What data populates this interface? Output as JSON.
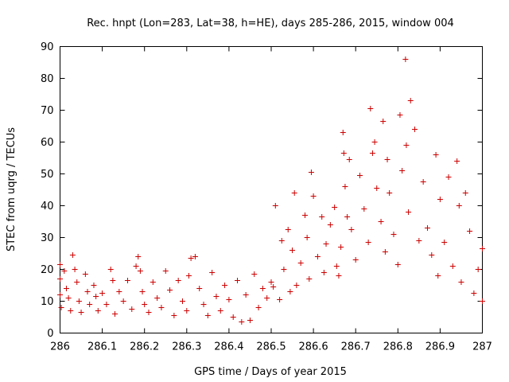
{
  "chart_data": {
    "type": "scatter",
    "title": "Rec. hnpt (Lon=283, Lat=38, h=HE), days 285-286, 2015, window 004",
    "xlabel": "GPS time / Days of year 2015",
    "ylabel": "STEC from uqrg / TECUs",
    "xlim": [
      286,
      287
    ],
    "ylim": [
      0,
      90
    ],
    "x_ticks": [
      "286",
      "286.1",
      "286.2",
      "286.3",
      "286.4",
      "286.5",
      "286.6",
      "286.7",
      "286.8",
      "286.9",
      "287"
    ],
    "y_ticks": [
      "0",
      "10",
      "20",
      "30",
      "40",
      "50",
      "60",
      "70",
      "80",
      "90"
    ],
    "grid": false,
    "marker": "plus",
    "colors": {
      "series": "#cc0000",
      "axes": "#000000"
    },
    "series": [
      {
        "points": [
          [
            286.0,
            21.5
          ],
          [
            286.0,
            17.0
          ],
          [
            286.0,
            12.0
          ],
          [
            286.003,
            8.0
          ],
          [
            286.01,
            19.5
          ],
          [
            286.015,
            14.0
          ],
          [
            286.02,
            11.0
          ],
          [
            286.025,
            7.0
          ],
          [
            286.03,
            24.5
          ],
          [
            286.035,
            20.0
          ],
          [
            286.04,
            16.0
          ],
          [
            286.045,
            10.0
          ],
          [
            286.05,
            6.5
          ],
          [
            286.06,
            18.5
          ],
          [
            286.065,
            13.0
          ],
          [
            286.07,
            9.0
          ],
          [
            286.08,
            15.0
          ],
          [
            286.085,
            11.5
          ],
          [
            286.09,
            7.0
          ],
          [
            286.1,
            12.5
          ],
          [
            286.11,
            9.0
          ],
          [
            286.12,
            20.0
          ],
          [
            286.125,
            16.5
          ],
          [
            286.13,
            6.0
          ],
          [
            286.14,
            13.0
          ],
          [
            286.15,
            10.0
          ],
          [
            286.16,
            16.5
          ],
          [
            286.17,
            7.5
          ],
          [
            286.18,
            21.0
          ],
          [
            286.185,
            24.0
          ],
          [
            286.19,
            19.5
          ],
          [
            286.195,
            13.0
          ],
          [
            286.2,
            9.0
          ],
          [
            286.21,
            6.5
          ],
          [
            286.22,
            16.0
          ],
          [
            286.23,
            11.0
          ],
          [
            286.24,
            8.0
          ],
          [
            286.25,
            19.5
          ],
          [
            286.26,
            13.5
          ],
          [
            286.27,
            5.5
          ],
          [
            286.28,
            16.5
          ],
          [
            286.29,
            10.0
          ],
          [
            286.3,
            7.0
          ],
          [
            286.305,
            18.0
          ],
          [
            286.31,
            23.5
          ],
          [
            286.32,
            24.0
          ],
          [
            286.33,
            14.0
          ],
          [
            286.34,
            9.0
          ],
          [
            286.35,
            5.5
          ],
          [
            286.36,
            19.0
          ],
          [
            286.37,
            11.5
          ],
          [
            286.38,
            7.0
          ],
          [
            286.39,
            15.0
          ],
          [
            286.4,
            10.5
          ],
          [
            286.41,
            5.0
          ],
          [
            286.42,
            16.5
          ],
          [
            286.43,
            3.5
          ],
          [
            286.44,
            12.0
          ],
          [
            286.45,
            4.0
          ],
          [
            286.46,
            18.5
          ],
          [
            286.47,
            8.0
          ],
          [
            286.48,
            14.0
          ],
          [
            286.49,
            11.0
          ],
          [
            286.5,
            16.0
          ],
          [
            286.505,
            14.5
          ],
          [
            286.51,
            40.0
          ],
          [
            286.52,
            10.5
          ],
          [
            286.525,
            29.0
          ],
          [
            286.53,
            20.0
          ],
          [
            286.54,
            32.5
          ],
          [
            286.545,
            13.0
          ],
          [
            286.55,
            26.0
          ],
          [
            286.555,
            44.0
          ],
          [
            286.56,
            15.0
          ],
          [
            286.57,
            22.0
          ],
          [
            286.58,
            37.0
          ],
          [
            286.585,
            30.0
          ],
          [
            286.59,
            17.0
          ],
          [
            286.595,
            50.5
          ],
          [
            286.6,
            43.0
          ],
          [
            286.61,
            24.0
          ],
          [
            286.62,
            36.5
          ],
          [
            286.625,
            19.0
          ],
          [
            286.63,
            28.0
          ],
          [
            286.64,
            34.0
          ],
          [
            286.65,
            39.5
          ],
          [
            286.655,
            21.0
          ],
          [
            286.66,
            18.0
          ],
          [
            286.665,
            27.0
          ],
          [
            286.67,
            63.0
          ],
          [
            286.672,
            56.5
          ],
          [
            286.675,
            46.0
          ],
          [
            286.68,
            36.5
          ],
          [
            286.685,
            54.5
          ],
          [
            286.69,
            32.5
          ],
          [
            286.7,
            23.0
          ],
          [
            286.71,
            49.5
          ],
          [
            286.72,
            39.0
          ],
          [
            286.73,
            28.5
          ],
          [
            286.735,
            70.5
          ],
          [
            286.74,
            56.5
          ],
          [
            286.745,
            60.0
          ],
          [
            286.75,
            45.5
          ],
          [
            286.76,
            35.0
          ],
          [
            286.765,
            66.5
          ],
          [
            286.77,
            25.5
          ],
          [
            286.775,
            54.5
          ],
          [
            286.78,
            44.0
          ],
          [
            286.79,
            31.0
          ],
          [
            286.8,
            21.5
          ],
          [
            286.805,
            68.5
          ],
          [
            286.81,
            51.0
          ],
          [
            286.818,
            86.0
          ],
          [
            286.82,
            59.0
          ],
          [
            286.825,
            38.0
          ],
          [
            286.83,
            73.0
          ],
          [
            286.84,
            64.0
          ],
          [
            286.85,
            29.0
          ],
          [
            286.86,
            47.5
          ],
          [
            286.87,
            33.0
          ],
          [
            286.88,
            24.5
          ],
          [
            286.89,
            56.0
          ],
          [
            286.895,
            18.0
          ],
          [
            286.9,
            42.0
          ],
          [
            286.91,
            28.5
          ],
          [
            286.92,
            49.0
          ],
          [
            286.93,
            21.0
          ],
          [
            286.94,
            54.0
          ],
          [
            286.945,
            40.0
          ],
          [
            286.95,
            16.0
          ],
          [
            286.96,
            44.0
          ],
          [
            286.97,
            32.0
          ],
          [
            286.98,
            12.5
          ],
          [
            286.99,
            20.0
          ],
          [
            287.0,
            26.5
          ],
          [
            287.0,
            10.0
          ]
        ]
      }
    ]
  }
}
